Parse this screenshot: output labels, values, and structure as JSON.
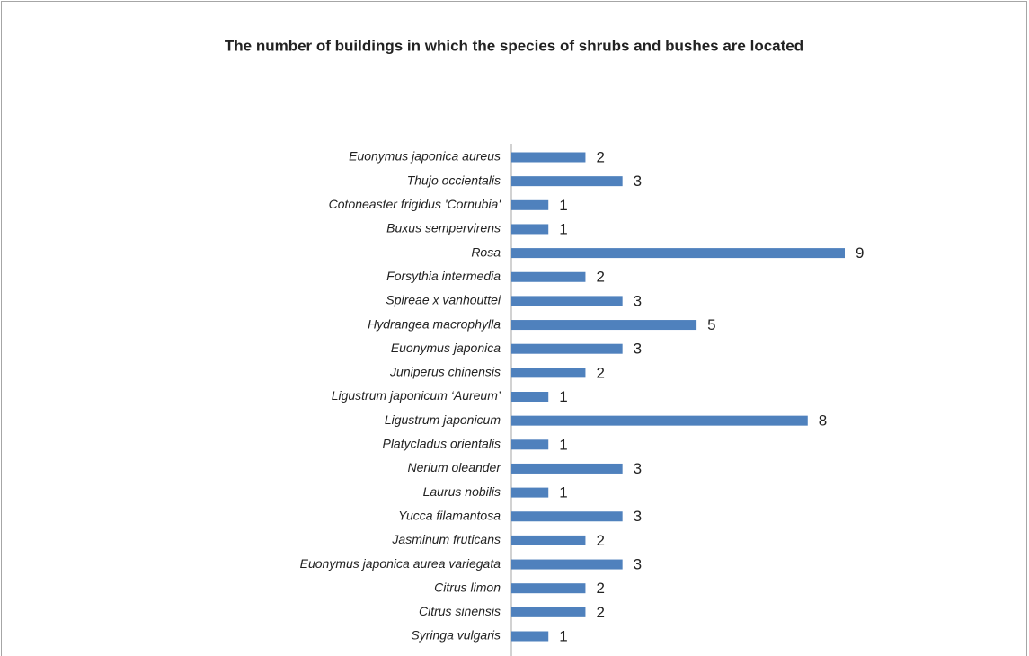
{
  "chart_data": {
    "type": "bar",
    "orientation": "horizontal",
    "title": "The number of buildings in which the species of shrubs and bushes are located",
    "categories": [
      "Euonymus japonica aureus",
      "Thujo occientalis",
      "Cotoneaster frigidus 'Cornubia'",
      "Buxus sempervirens",
      "Rosa",
      "Forsythia intermedia",
      "Spireae x vanhouttei",
      "Hydrangea macrophylla",
      "Euonymus japonica",
      "Juniperus chinensis",
      "Ligustrum japonicum ‘Aureum’",
      "Ligustrum japonicum",
      "Platycladus orientalis",
      "Nerium oleander",
      "Laurus nobilis",
      "Yucca filamantosa",
      "Jasminum fruticans",
      "Euonymus japonica aurea variegata",
      "Citrus limon",
      "Citrus sinensis",
      "Syringa vulgaris"
    ],
    "values": [
      2,
      3,
      1,
      1,
      9,
      2,
      3,
      5,
      3,
      2,
      1,
      8,
      1,
      3,
      1,
      3,
      2,
      3,
      2,
      2,
      1
    ],
    "color": "#4f81bd"
  }
}
